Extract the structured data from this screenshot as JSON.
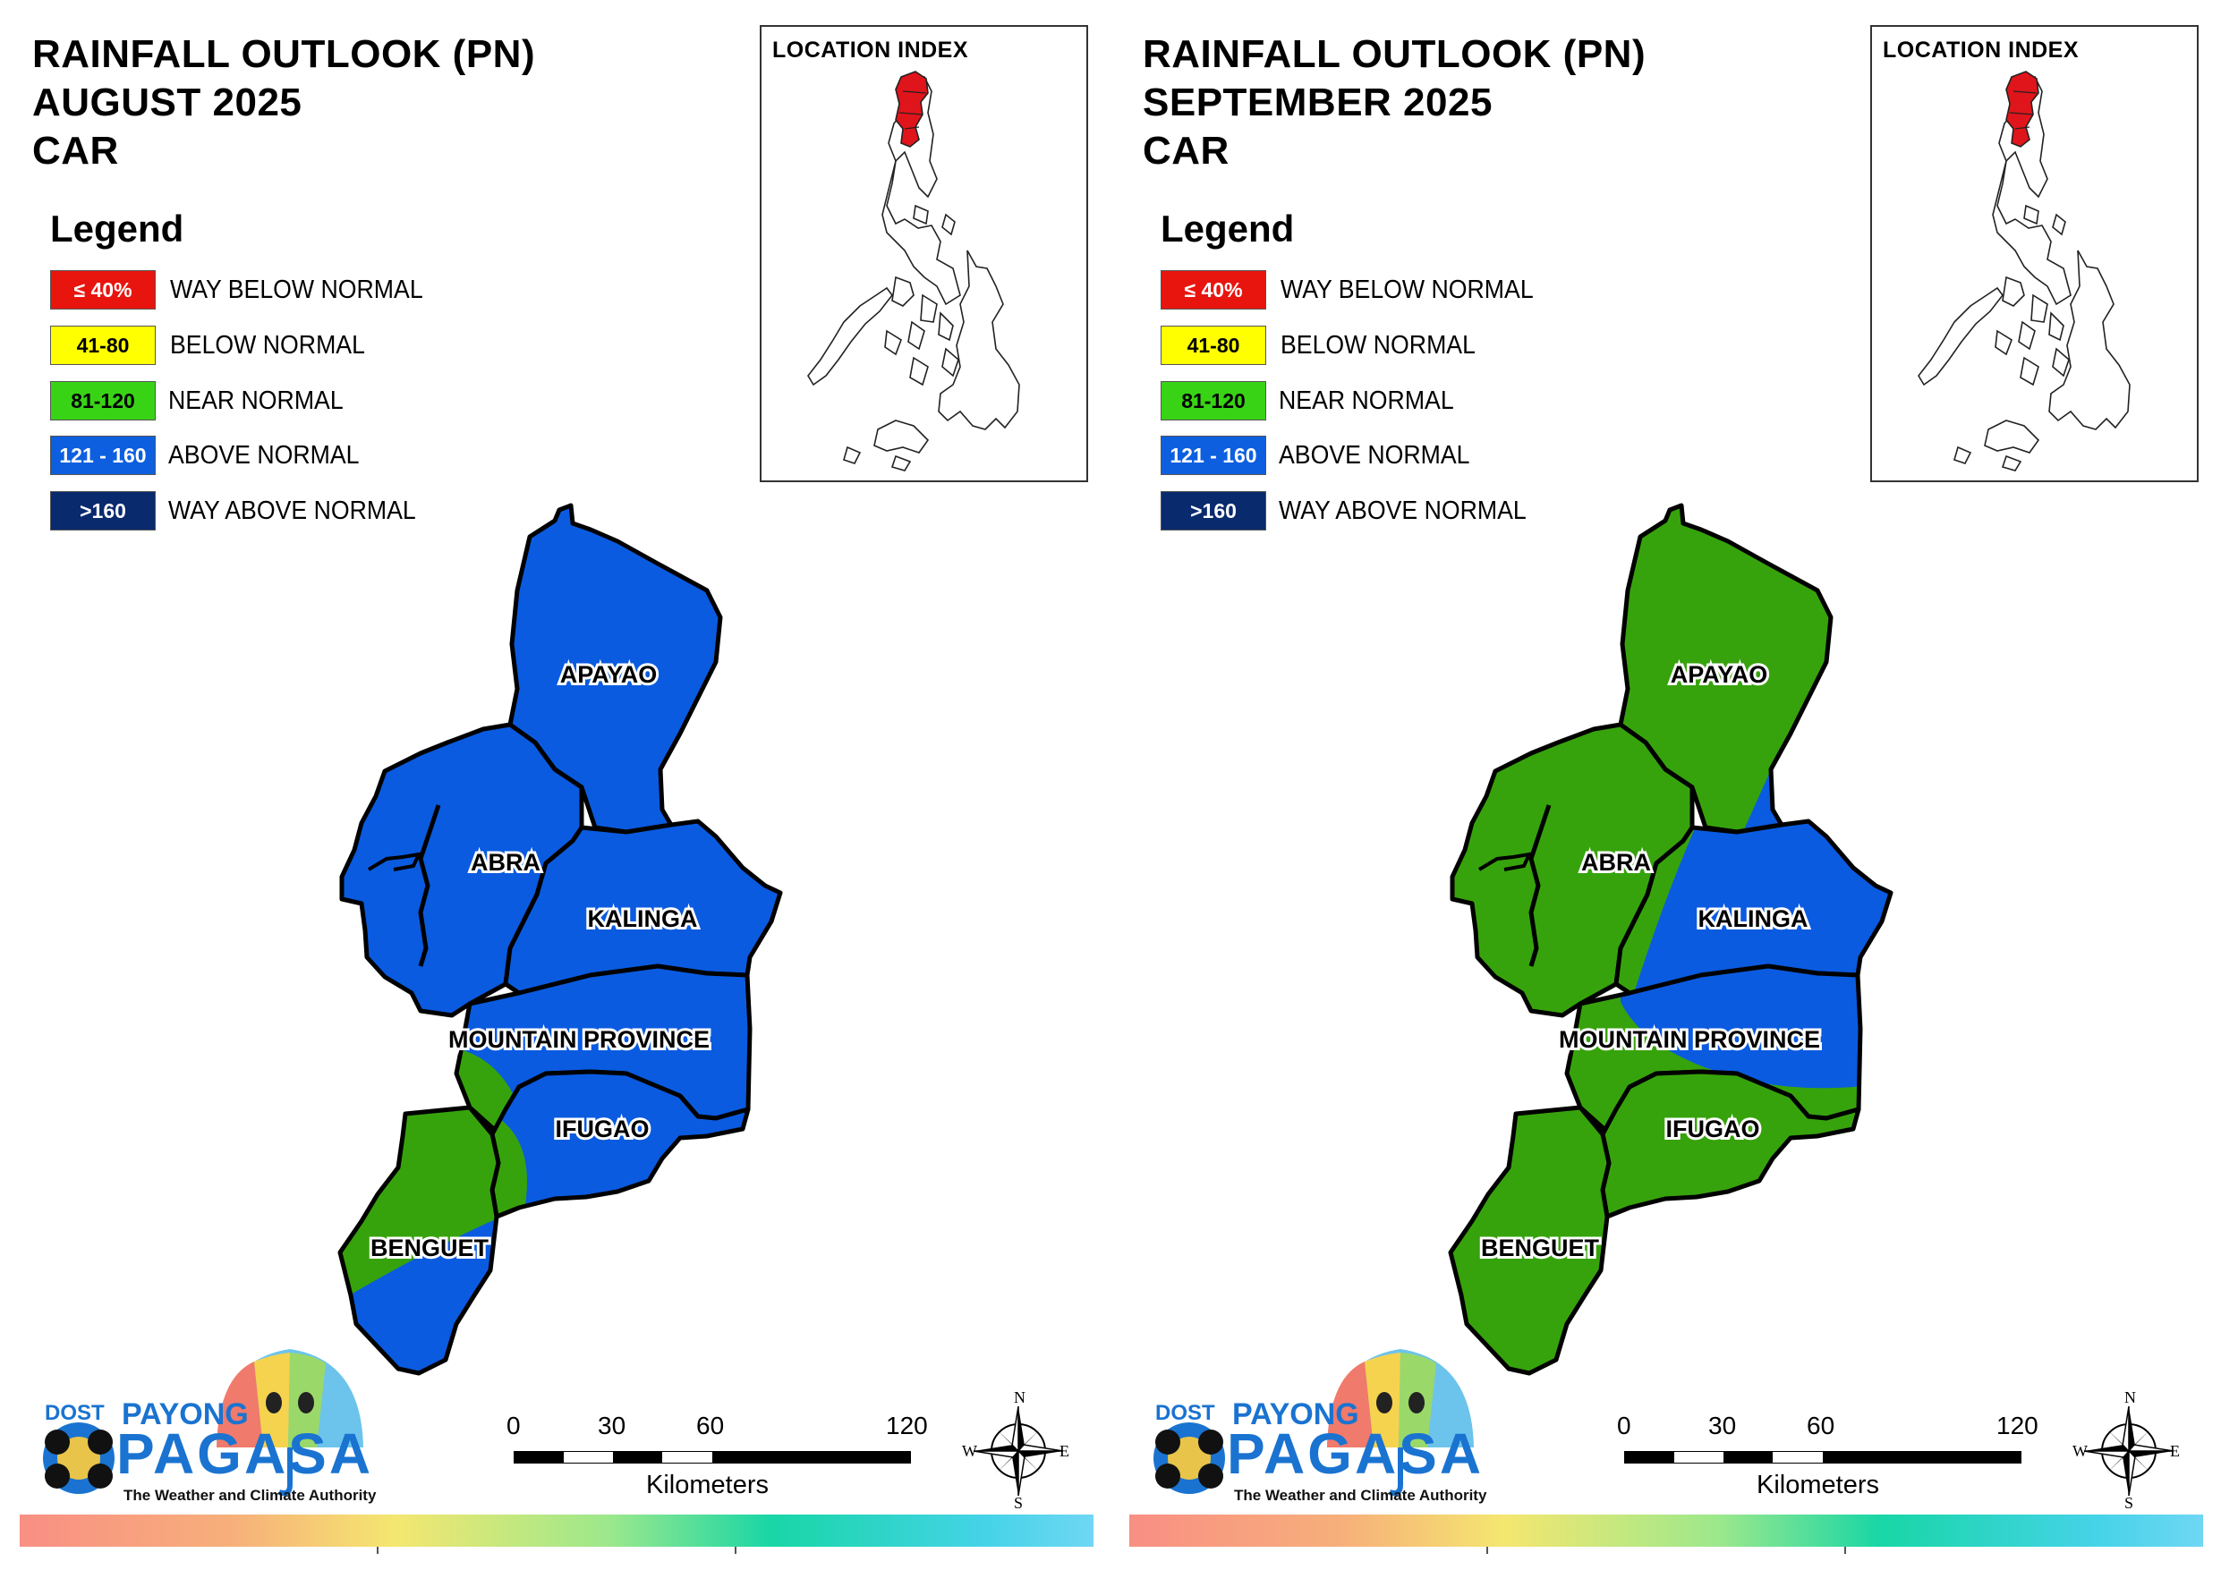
{
  "panels": [
    {
      "title_line1": "RAINFALL OUTLOOK (PN)",
      "title_line2": "AUGUST 2025",
      "title_line3": "CAR",
      "legend_title": "Legend",
      "legend": [
        {
          "range": "≤ 40%",
          "label": "WAY BELOW NORMAL",
          "color": "#e8150f",
          "text_color": "#ffffff"
        },
        {
          "range": "41-80",
          "label": "BELOW NORMAL",
          "color": "#ffff00",
          "text_color": "#000000"
        },
        {
          "range": "81-120",
          "label": "NEAR NORMAL",
          "color": "#39d316",
          "text_color": "#000000"
        },
        {
          "range": "121 - 160",
          "label": "ABOVE NORMAL",
          "color": "#0d5fe0",
          "text_color": "#ffffff"
        },
        {
          "range": ">160",
          "label": "WAY ABOVE NORMAL",
          "color": "#0a2a6e",
          "text_color": "#ffffff"
        }
      ],
      "index_title": "LOCATION INDEX",
      "provinces": [
        {
          "name": "APAYAO",
          "category": "ABOVE NORMAL"
        },
        {
          "name": "ABRA",
          "category": "ABOVE NORMAL"
        },
        {
          "name": "KALINGA",
          "category": "ABOVE NORMAL"
        },
        {
          "name": "MOUNTAIN PROVINCE",
          "category": "ABOVE NORMAL"
        },
        {
          "name": "IFUGAO",
          "category": "ABOVE NORMAL"
        },
        {
          "name": "BENGUET",
          "category": "NEAR NORMAL / ABOVE NORMAL"
        }
      ],
      "scale": {
        "ticks": [
          "0",
          "30",
          "60",
          "120"
        ],
        "unit": "Kilometers"
      },
      "compass": {
        "n": "N",
        "e": "E",
        "s": "S",
        "w": "W"
      },
      "logo": {
        "dost": "DOST",
        "payong": "PAYONG",
        "pagasa": "PAGASA",
        "tagline": "The Weather and Climate Authority"
      }
    },
    {
      "title_line1": "RAINFALL OUTLOOK (PN)",
      "title_line2": "SEPTEMBER 2025",
      "title_line3": "CAR",
      "legend_title": "Legend",
      "legend": [
        {
          "range": "≤ 40%",
          "label": "WAY BELOW NORMAL",
          "color": "#e8150f",
          "text_color": "#ffffff"
        },
        {
          "range": "41-80",
          "label": "BELOW NORMAL",
          "color": "#ffff00",
          "text_color": "#000000"
        },
        {
          "range": "81-120",
          "label": "NEAR NORMAL",
          "color": "#39d316",
          "text_color": "#000000"
        },
        {
          "range": "121 - 160",
          "label": "ABOVE NORMAL",
          "color": "#0d5fe0",
          "text_color": "#ffffff"
        },
        {
          "range": ">160",
          "label": "WAY ABOVE NORMAL",
          "color": "#0a2a6e",
          "text_color": "#ffffff"
        }
      ],
      "index_title": "LOCATION INDEX",
      "provinces": [
        {
          "name": "APAYAO",
          "category": "NEAR NORMAL"
        },
        {
          "name": "ABRA",
          "category": "NEAR NORMAL"
        },
        {
          "name": "KALINGA",
          "category": "ABOVE NORMAL"
        },
        {
          "name": "MOUNTAIN PROVINCE",
          "category": "ABOVE NORMAL / NEAR NORMAL"
        },
        {
          "name": "IFUGAO",
          "category": "NEAR NORMAL"
        },
        {
          "name": "BENGUET",
          "category": "NEAR NORMAL"
        }
      ],
      "scale": {
        "ticks": [
          "0",
          "30",
          "60",
          "120"
        ],
        "unit": "Kilometers"
      },
      "compass": {
        "n": "N",
        "e": "E",
        "s": "S",
        "w": "W"
      },
      "logo": {
        "dost": "DOST",
        "payong": "PAYONG",
        "pagasa": "PAGASA",
        "tagline": "The Weather and Climate Authority"
      }
    }
  ],
  "colors": {
    "near_normal_fill": "#37a30c",
    "above_normal_fill": "#0a5be0",
    "index_highlight": "#e0141b"
  }
}
